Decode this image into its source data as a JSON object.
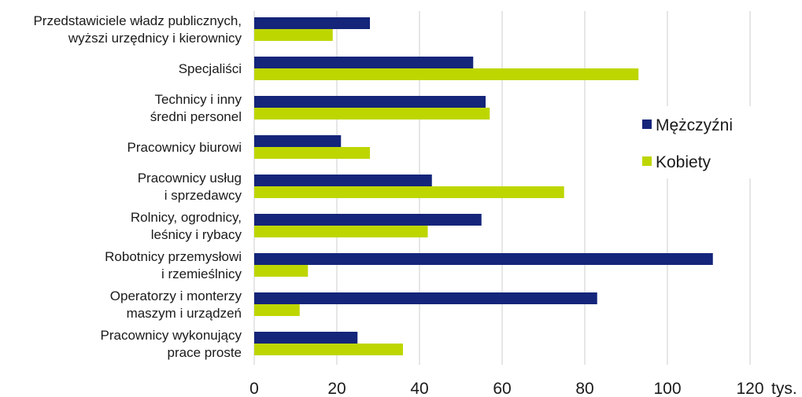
{
  "chart_data": {
    "type": "bar",
    "orientation": "horizontal",
    "categories": [
      [
        "Przedstawiciele władz publicznych,",
        "wyższi urzędnicy i kierownicy"
      ],
      [
        "Specjaliści"
      ],
      [
        "Technicy i inny",
        "średni personel"
      ],
      [
        "Pracownicy biurowi"
      ],
      [
        "Pracownicy usług",
        "i sprzedawcy"
      ],
      [
        "Rolnicy, ogrodnicy,",
        "leśnicy i rybacy"
      ],
      [
        "Robotnicy przemysłowi",
        "i rzemieślnicy"
      ],
      [
        "Operatorzy i monterzy",
        "maszym i urządzeń"
      ],
      [
        "Pracownicy wykonujący",
        "prace proste"
      ]
    ],
    "series": [
      {
        "name": "Mężczyźni",
        "color": "#14257a",
        "values": [
          28,
          53,
          56,
          21,
          43,
          55,
          111,
          83,
          25
        ]
      },
      {
        "name": "Kobiety",
        "color": "#bed600",
        "values": [
          19,
          93,
          57,
          28,
          75,
          42,
          13,
          11,
          36
        ]
      }
    ],
    "x_ticks": [
      "0",
      "20",
      "40",
      "60",
      "80",
      "100",
      "120"
    ],
    "xlim": [
      0,
      120
    ],
    "x_unit": "tys.",
    "grid": "vertical",
    "legend_position": "right"
  }
}
